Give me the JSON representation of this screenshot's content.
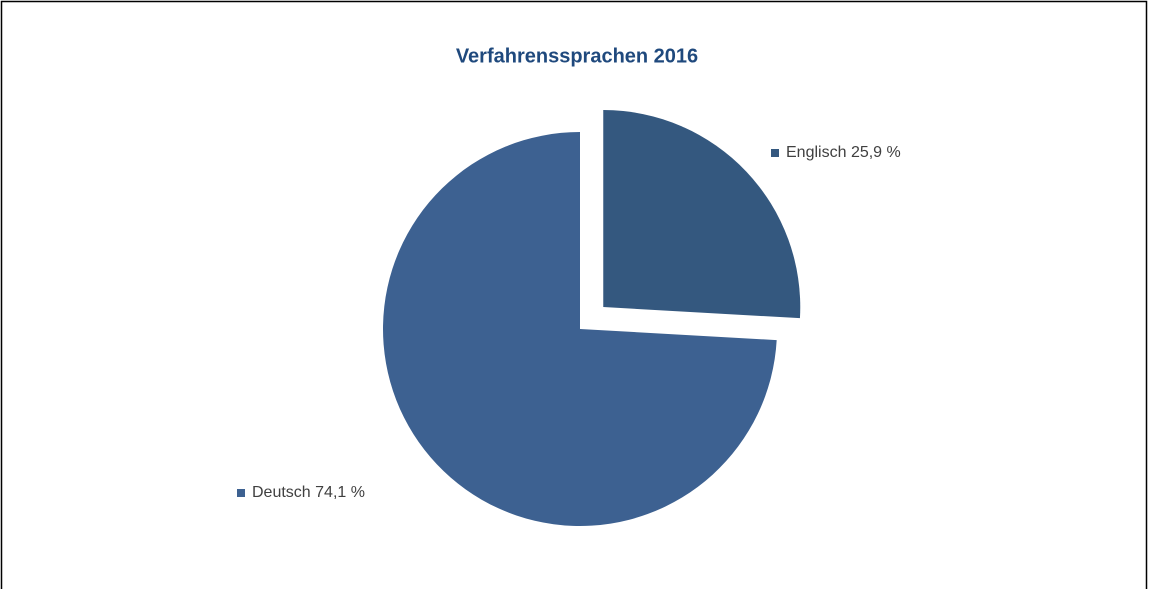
{
  "chart_data": {
    "type": "pie",
    "title": "Verfahrenssprachen 2016",
    "categories": [
      "Englisch",
      "Deutsch"
    ],
    "values": [
      25.9,
      74.1
    ],
    "value_labels": [
      "25,9 %",
      "74,1 %"
    ],
    "colors": [
      "#34587f",
      "#3d6191"
    ],
    "exploded": [
      true,
      false
    ]
  }
}
